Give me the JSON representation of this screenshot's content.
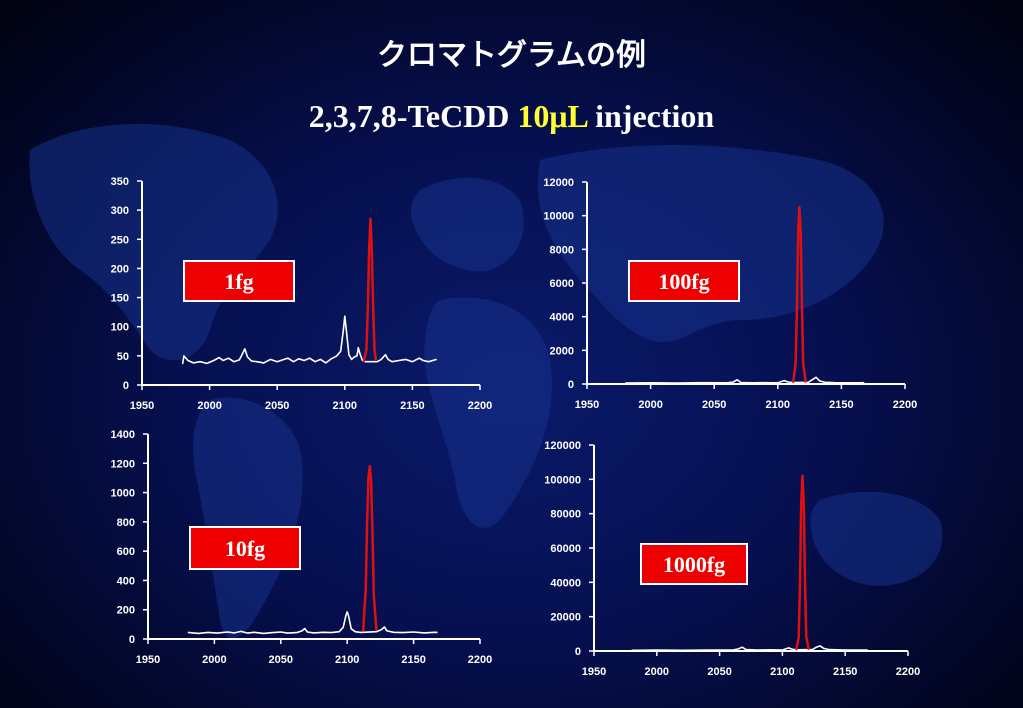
{
  "title": "クロマトグラムの例",
  "subtitle": {
    "compound": "2,3,7,8-TeCDD",
    "volume": "10μL",
    "suffix": "injection"
  },
  "colors": {
    "analyte_peak": "#e01010",
    "baseline": "#ffffff",
    "label_bg": "#ee0000",
    "highlight": "#ffff33"
  },
  "chart_data": [
    {
      "type": "line",
      "label": "1fg",
      "xlim": [
        1950,
        2200
      ],
      "ylim": [
        0,
        350
      ],
      "xticks": [
        1950,
        2000,
        2050,
        2100,
        2150,
        2200
      ],
      "yticks": [
        0,
        50,
        100,
        150,
        200,
        250,
        300,
        350
      ],
      "series": [
        {
          "color": "#ffffff",
          "points": [
            [
              1980,
              36
            ],
            [
              1981,
              50
            ],
            [
              1984,
              42
            ],
            [
              1988,
              38
            ],
            [
              1993,
              40
            ],
            [
              1998,
              37
            ],
            [
              2003,
              42
            ],
            [
              2007,
              47
            ],
            [
              2010,
              42
            ],
            [
              2014,
              46
            ],
            [
              2018,
              40
            ],
            [
              2022,
              43
            ],
            [
              2024,
              52
            ],
            [
              2026,
              62
            ],
            [
              2028,
              48
            ],
            [
              2031,
              41
            ],
            [
              2035,
              40
            ],
            [
              2040,
              38
            ],
            [
              2045,
              44
            ],
            [
              2050,
              40
            ],
            [
              2055,
              44
            ],
            [
              2058,
              46
            ],
            [
              2062,
              40
            ],
            [
              2066,
              45
            ],
            [
              2070,
              42
            ],
            [
              2074,
              46
            ],
            [
              2078,
              40
            ],
            [
              2082,
              44
            ],
            [
              2086,
              38
            ],
            [
              2090,
              45
            ],
            [
              2094,
              50
            ],
            [
              2097,
              58
            ],
            [
              2099,
              95
            ],
            [
              2100,
              118
            ],
            [
              2101,
              96
            ],
            [
              2103,
              52
            ],
            [
              2105,
              44
            ],
            [
              2107,
              48
            ],
            [
              2109,
              50
            ],
            [
              2110,
              64
            ],
            [
              2111,
              55
            ],
            [
              2113,
              42
            ],
            [
              2115,
              40
            ],
            [
              2124,
              40
            ],
            [
              2127,
              44
            ],
            [
              2130,
              52
            ],
            [
              2132,
              44
            ],
            [
              2135,
              40
            ],
            [
              2140,
              42
            ],
            [
              2145,
              44
            ],
            [
              2150,
              40
            ],
            [
              2155,
              46
            ],
            [
              2158,
              42
            ],
            [
              2162,
              40
            ],
            [
              2165,
              42
            ],
            [
              2168,
              44
            ]
          ]
        },
        {
          "color": "#e01010",
          "points": [
            [
              2114,
              40
            ],
            [
              2116,
              60
            ],
            [
              2117,
              130
            ],
            [
              2118,
              230
            ],
            [
              2119,
              285
            ],
            [
              2120,
              230
            ],
            [
              2121,
              130
            ],
            [
              2122,
              60
            ],
            [
              2123,
              42
            ]
          ]
        }
      ]
    },
    {
      "type": "line",
      "label": "100fg",
      "xlim": [
        1950,
        2200
      ],
      "ylim": [
        0,
        12000
      ],
      "xticks": [
        1950,
        2000,
        2050,
        2100,
        2150,
        2200
      ],
      "yticks": [
        0,
        2000,
        4000,
        6000,
        8000,
        10000,
        12000
      ],
      "series": [
        {
          "color": "#ffffff",
          "points": [
            [
              1980,
              60
            ],
            [
              2000,
              70
            ],
            [
              2020,
              60
            ],
            [
              2040,
              80
            ],
            [
              2060,
              70
            ],
            [
              2065,
              120
            ],
            [
              2068,
              250
            ],
            [
              2071,
              90
            ],
            [
              2080,
              70
            ],
            [
              2090,
              80
            ],
            [
              2100,
              70
            ],
            [
              2105,
              200
            ],
            [
              2108,
              120
            ],
            [
              2112,
              90
            ],
            [
              2124,
              100
            ],
            [
              2127,
              250
            ],
            [
              2130,
              400
            ],
            [
              2133,
              180
            ],
            [
              2137,
              100
            ],
            [
              2145,
              80
            ],
            [
              2160,
              70
            ],
            [
              2168,
              80
            ]
          ]
        },
        {
          "color": "#e01010",
          "points": [
            [
              2112,
              80
            ],
            [
              2114,
              1200
            ],
            [
              2115,
              4500
            ],
            [
              2116,
              9000
            ],
            [
              2117,
              10500
            ],
            [
              2118,
              9000
            ],
            [
              2119,
              4500
            ],
            [
              2120,
              1200
            ],
            [
              2122,
              90
            ]
          ]
        }
      ]
    },
    {
      "type": "line",
      "label": "10fg",
      "xlim": [
        1950,
        2200
      ],
      "ylim": [
        0,
        1400
      ],
      "xticks": [
        1950,
        2000,
        2050,
        2100,
        2150,
        2200
      ],
      "yticks": [
        0,
        200,
        400,
        600,
        800,
        1000,
        1200,
        1400
      ],
      "series": [
        {
          "color": "#ffffff",
          "points": [
            [
              1980,
              45
            ],
            [
              1988,
              38
            ],
            [
              1995,
              45
            ],
            [
              2002,
              40
            ],
            [
              2010,
              48
            ],
            [
              2015,
              42
            ],
            [
              2020,
              52
            ],
            [
              2025,
              40
            ],
            [
              2030,
              46
            ],
            [
              2037,
              38
            ],
            [
              2044,
              44
            ],
            [
              2050,
              48
            ],
            [
              2055,
              40
            ],
            [
              2062,
              44
            ],
            [
              2066,
              55
            ],
            [
              2068,
              72
            ],
            [
              2070,
              48
            ],
            [
              2075,
              42
            ],
            [
              2082,
              46
            ],
            [
              2088,
              44
            ],
            [
              2094,
              50
            ],
            [
              2097,
              80
            ],
            [
              2099,
              160
            ],
            [
              2100,
              185
            ],
            [
              2101,
              160
            ],
            [
              2103,
              70
            ],
            [
              2106,
              50
            ],
            [
              2110,
              45
            ],
            [
              2122,
              50
            ],
            [
              2126,
              65
            ],
            [
              2128,
              82
            ],
            [
              2130,
              55
            ],
            [
              2135,
              46
            ],
            [
              2142,
              44
            ],
            [
              2150,
              48
            ],
            [
              2158,
              42
            ],
            [
              2166,
              46
            ],
            [
              2168,
              45
            ]
          ]
        },
        {
          "color": "#e01010",
          "points": [
            [
              2112,
              50
            ],
            [
              2114,
              350
            ],
            [
              2115,
              800
            ],
            [
              2116,
              1100
            ],
            [
              2117,
              1180
            ],
            [
              2118,
              1080
            ],
            [
              2119,
              750
            ],
            [
              2120,
              300
            ],
            [
              2122,
              60
            ]
          ]
        }
      ]
    },
    {
      "type": "line",
      "label": "1000fg",
      "xlim": [
        1950,
        2200
      ],
      "ylim": [
        0,
        120000
      ],
      "xticks": [
        1950,
        2000,
        2050,
        2100,
        2150,
        2200
      ],
      "yticks": [
        0,
        20000,
        40000,
        60000,
        80000,
        100000,
        120000
      ],
      "series": [
        {
          "color": "#ffffff",
          "points": [
            [
              1980,
              400
            ],
            [
              2000,
              500
            ],
            [
              2020,
              400
            ],
            [
              2040,
              600
            ],
            [
              2060,
              500
            ],
            [
              2065,
              1200
            ],
            [
              2068,
              2200
            ],
            [
              2071,
              800
            ],
            [
              2080,
              500
            ],
            [
              2090,
              700
            ],
            [
              2100,
              600
            ],
            [
              2105,
              1800
            ],
            [
              2108,
              1000
            ],
            [
              2112,
              700
            ],
            [
              2124,
              900
            ],
            [
              2127,
              2200
            ],
            [
              2130,
              3000
            ],
            [
              2133,
              1500
            ],
            [
              2137,
              800
            ],
            [
              2150,
              600
            ],
            [
              2160,
              500
            ],
            [
              2168,
              600
            ]
          ]
        },
        {
          "color": "#e01010",
          "points": [
            [
              2111,
              600
            ],
            [
              2113,
              8000
            ],
            [
              2114,
              40000
            ],
            [
              2115,
              85000
            ],
            [
              2116,
              102000
            ],
            [
              2117,
              85000
            ],
            [
              2118,
              40000
            ],
            [
              2119,
              8000
            ],
            [
              2121,
              700
            ]
          ]
        }
      ]
    }
  ]
}
